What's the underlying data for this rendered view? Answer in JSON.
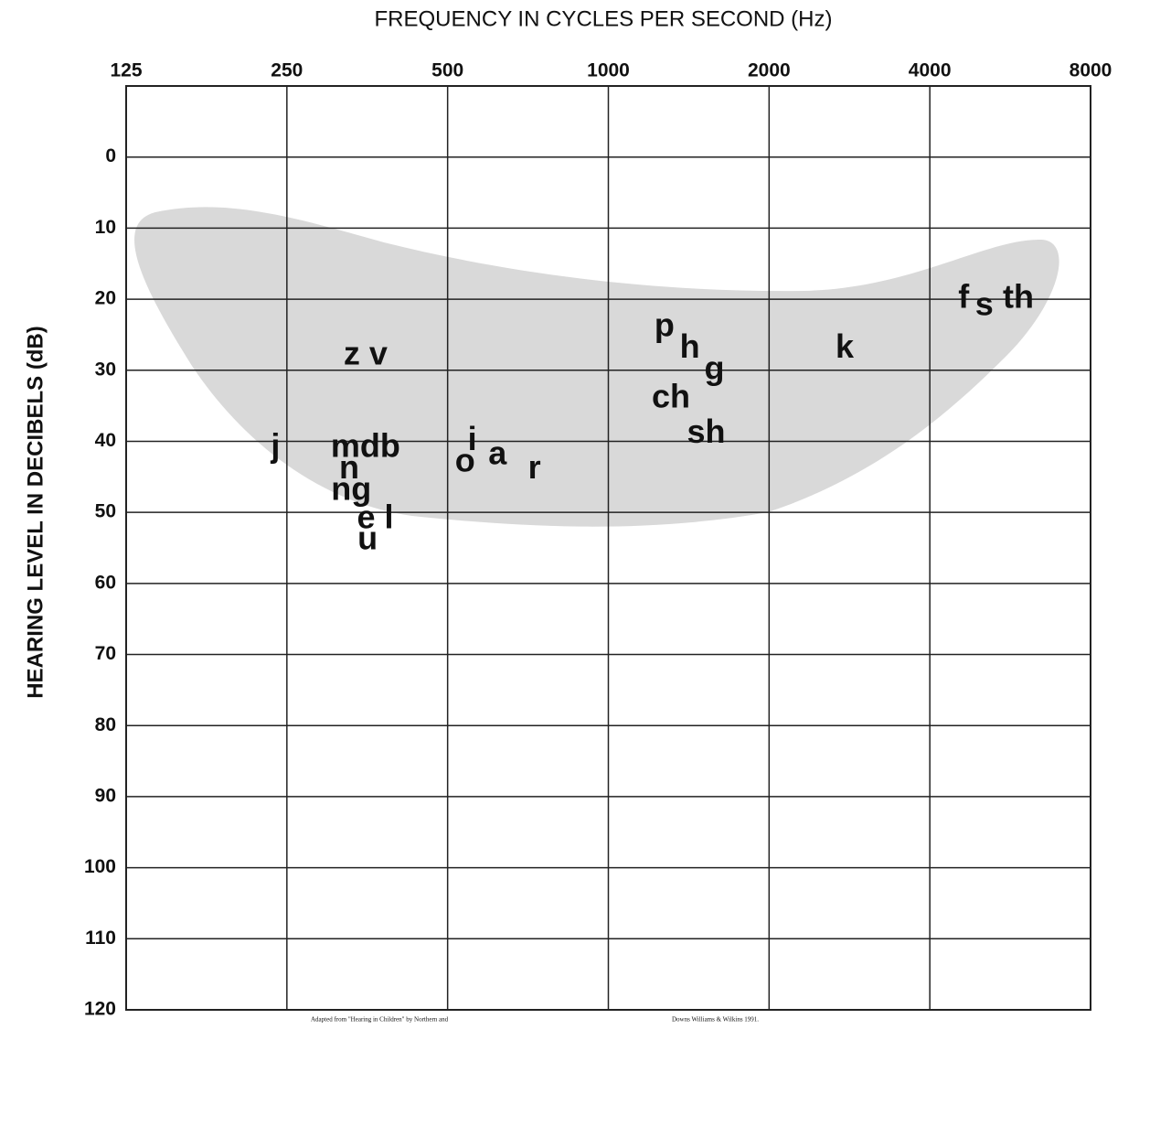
{
  "chart_data": {
    "type": "audiogram",
    "title": "FREQUENCY IN CYCLES PER SECOND (Hz)",
    "y_label": "HEARING LEVEL IN DECIBELS (dB)",
    "xscale": "log",
    "xlim": [
      125,
      8000
    ],
    "xticks": [
      125,
      250,
      500,
      1000,
      2000,
      4000,
      8000
    ],
    "ylim": [
      -10,
      120
    ],
    "yticks": [
      0,
      10,
      20,
      30,
      40,
      50,
      60,
      70,
      80,
      90,
      100,
      110,
      120
    ],
    "y_inverted": true,
    "grid": true,
    "sounds": [
      {
        "label": "z v",
        "x": 351,
        "y": 28
      },
      {
        "label": "j",
        "x": 238,
        "y": 41
      },
      {
        "label": "mdb",
        "x": 351,
        "y": 41
      },
      {
        "label": "n",
        "x": 327,
        "y": 44
      },
      {
        "label": "ng",
        "x": 330,
        "y": 47
      },
      {
        "label": "e l",
        "x": 366,
        "y": 51
      },
      {
        "label": "u",
        "x": 354,
        "y": 54
      },
      {
        "label": "i",
        "x": 556,
        "y": 40
      },
      {
        "label": "o",
        "x": 539,
        "y": 43
      },
      {
        "label": "a",
        "x": 620,
        "y": 42
      },
      {
        "label": "r",
        "x": 727,
        "y": 44
      },
      {
        "label": "p",
        "x": 1274,
        "y": 24
      },
      {
        "label": "h",
        "x": 1421,
        "y": 27
      },
      {
        "label": "g",
        "x": 1580,
        "y": 30
      },
      {
        "label": "ch",
        "x": 1310,
        "y": 34
      },
      {
        "label": "sh",
        "x": 1525,
        "y": 39
      },
      {
        "label": "k",
        "x": 2770,
        "y": 27
      },
      {
        "label": "f",
        "x": 4630,
        "y": 20
      },
      {
        "label": "s",
        "x": 5060,
        "y": 21
      },
      {
        "label": "th",
        "x": 5860,
        "y": 20
      }
    ],
    "credit_left": "Adapted from \"Hearing in Children\" by Northern and",
    "credit_right": "Downs Williams & Wilkins 1991."
  }
}
